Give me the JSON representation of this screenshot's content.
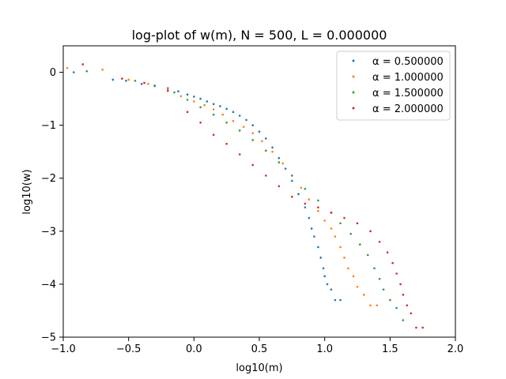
{
  "chart_data": {
    "type": "scatter",
    "title": "log-plot of w(m), N = 500, L = 0.000000",
    "xlabel": "log10(m)",
    "ylabel": "log10(w)",
    "xlim": [
      -1.0,
      2.0
    ],
    "ylim": [
      -5,
      0.5
    ],
    "x_log_scale": false,
    "y_log_scale": false,
    "grid": false,
    "legend_placement": "top-right",
    "x_ticks": [
      -1.0,
      -0.5,
      0.0,
      0.5,
      1.0,
      1.5,
      2.0
    ],
    "x_tick_labels": [
      "−1.0",
      "−0.5",
      "0.0",
      "0.5",
      "1.0",
      "1.5",
      "2.0"
    ],
    "y_ticks": [
      0,
      -1,
      -2,
      -3,
      -4,
      -5
    ],
    "y_tick_labels": [
      "0",
      "−1",
      "−2",
      "−3",
      "−4",
      "−5"
    ],
    "series": [
      {
        "name": "α = 0.500000",
        "color": "#1f77b4",
        "points": [
          [
            -0.92,
            0.0
          ],
          [
            -0.62,
            -0.14
          ],
          [
            -0.52,
            -0.16
          ],
          [
            -0.4,
            -0.22
          ],
          [
            -0.3,
            -0.26
          ],
          [
            -0.2,
            -0.3
          ],
          [
            -0.12,
            -0.36
          ],
          [
            -0.05,
            -0.42
          ],
          [
            0.0,
            -0.46
          ],
          [
            0.05,
            -0.5
          ],
          [
            0.1,
            -0.55
          ],
          [
            0.15,
            -0.6
          ],
          [
            0.2,
            -0.64
          ],
          [
            0.25,
            -0.69
          ],
          [
            0.3,
            -0.75
          ],
          [
            0.35,
            -0.82
          ],
          [
            0.4,
            -0.9
          ],
          [
            0.45,
            -1.0
          ],
          [
            0.5,
            -1.12
          ],
          [
            0.55,
            -1.25
          ],
          [
            0.6,
            -1.42
          ],
          [
            0.65,
            -1.62
          ],
          [
            0.7,
            -1.82
          ],
          [
            0.75,
            -2.05
          ],
          [
            0.8,
            -2.3
          ],
          [
            0.85,
            -2.55
          ],
          [
            0.88,
            -2.75
          ],
          [
            0.9,
            -2.95
          ],
          [
            0.92,
            -3.1
          ],
          [
            0.95,
            -3.3
          ],
          [
            0.97,
            -3.5
          ],
          [
            0.99,
            -3.7
          ],
          [
            1.0,
            -3.85
          ],
          [
            1.02,
            -4.0
          ],
          [
            1.05,
            -4.1
          ],
          [
            1.08,
            -4.3
          ],
          [
            1.12,
            -4.3
          ]
        ]
      },
      {
        "name": "α = 1.000000",
        "color": "#ff7f0e",
        "points": [
          [
            -0.97,
            0.08
          ],
          [
            -0.7,
            0.05
          ],
          [
            -0.5,
            -0.14
          ],
          [
            -0.35,
            -0.22
          ],
          [
            -0.2,
            -0.32
          ],
          [
            -0.1,
            -0.45
          ],
          [
            0.0,
            -0.55
          ],
          [
            0.08,
            -0.62
          ],
          [
            0.15,
            -0.7
          ],
          [
            0.22,
            -0.8
          ],
          [
            0.3,
            -0.92
          ],
          [
            0.38,
            -1.03
          ],
          [
            0.45,
            -1.15
          ],
          [
            0.52,
            -1.3
          ],
          [
            0.6,
            -1.5
          ],
          [
            0.68,
            -1.72
          ],
          [
            0.75,
            -1.95
          ],
          [
            0.82,
            -2.18
          ],
          [
            0.88,
            -2.4
          ],
          [
            0.95,
            -2.62
          ],
          [
            1.0,
            -2.8
          ],
          [
            1.05,
            -2.95
          ],
          [
            1.08,
            -3.1
          ],
          [
            1.12,
            -3.3
          ],
          [
            1.15,
            -3.5
          ],
          [
            1.18,
            -3.7
          ],
          [
            1.22,
            -3.85
          ],
          [
            1.25,
            -4.05
          ],
          [
            1.3,
            -4.2
          ],
          [
            1.35,
            -4.4
          ],
          [
            1.4,
            -4.4
          ]
        ]
      },
      {
        "name": "α = 1.500000",
        "color": "#2ca02c",
        "points": [
          [
            -0.82,
            0.02
          ],
          [
            -0.45,
            -0.16
          ],
          [
            -0.3,
            -0.25
          ],
          [
            -0.15,
            -0.38
          ],
          [
            -0.05,
            -0.52
          ],
          [
            0.05,
            -0.66
          ],
          [
            0.15,
            -0.8
          ],
          [
            0.25,
            -0.95
          ],
          [
            0.35,
            -1.1
          ],
          [
            0.45,
            -1.28
          ],
          [
            0.55,
            -1.48
          ],
          [
            0.65,
            -1.7
          ],
          [
            0.75,
            -1.95
          ],
          [
            0.85,
            -2.2
          ],
          [
            0.95,
            -2.42
          ],
          [
            1.05,
            -2.65
          ],
          [
            1.12,
            -2.85
          ],
          [
            1.2,
            -3.05
          ],
          [
            1.27,
            -3.25
          ],
          [
            1.33,
            -3.45
          ],
          [
            1.38,
            -3.7
          ],
          [
            1.42,
            -3.9
          ],
          [
            1.45,
            -4.1
          ],
          [
            1.5,
            -4.3
          ],
          [
            1.55,
            -4.45
          ],
          [
            1.6,
            -4.68
          ]
        ]
      },
      {
        "name": "α = 2.000000",
        "color": "#d62728",
        "points": [
          [
            -0.85,
            0.15
          ],
          [
            -0.55,
            -0.12
          ],
          [
            -0.38,
            -0.2
          ],
          [
            -0.2,
            -0.35
          ],
          [
            -0.05,
            -0.75
          ],
          [
            0.05,
            -0.95
          ],
          [
            0.15,
            -1.18
          ],
          [
            0.25,
            -1.35
          ],
          [
            0.35,
            -1.55
          ],
          [
            0.45,
            -1.75
          ],
          [
            0.55,
            -1.95
          ],
          [
            0.65,
            -2.15
          ],
          [
            0.75,
            -2.35
          ],
          [
            0.85,
            -2.48
          ],
          [
            0.95,
            -2.55
          ],
          [
            1.05,
            -2.65
          ],
          [
            1.15,
            -2.75
          ],
          [
            1.25,
            -2.85
          ],
          [
            1.35,
            -3.0
          ],
          [
            1.42,
            -3.2
          ],
          [
            1.48,
            -3.4
          ],
          [
            1.52,
            -3.6
          ],
          [
            1.55,
            -3.8
          ],
          [
            1.58,
            -4.0
          ],
          [
            1.6,
            -4.2
          ],
          [
            1.63,
            -4.4
          ],
          [
            1.66,
            -4.55
          ],
          [
            1.7,
            -4.82
          ],
          [
            1.75,
            -4.82
          ]
        ]
      }
    ]
  }
}
